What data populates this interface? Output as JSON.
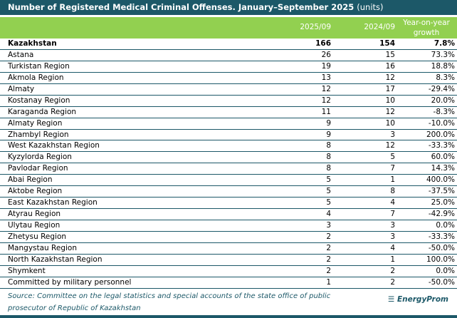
{
  "chart_data": {
    "type": "table",
    "title": "Number of Registered Medical Criminal Offenses. January–September 2025",
    "unit": "(units)",
    "columns": [
      "",
      "2025/09",
      "2024/09",
      "Year-on-year growth"
    ],
    "total": {
      "region": "Kazakhstan",
      "v2025": "166",
      "v2024": "154",
      "growth": "7.8%"
    },
    "rows": [
      {
        "region": "Astana",
        "v2025": "26",
        "v2024": "15",
        "growth": "73.3%"
      },
      {
        "region": "Turkistan Region",
        "v2025": "19",
        "v2024": "16",
        "growth": "18.8%"
      },
      {
        "region": "Akmola Region",
        "v2025": "13",
        "v2024": "12",
        "growth": "8.3%"
      },
      {
        "region": "Almaty",
        "v2025": "12",
        "v2024": "17",
        "growth": "-29.4%"
      },
      {
        "region": "Kostanay Region",
        "v2025": "12",
        "v2024": "10",
        "growth": "20.0%"
      },
      {
        "region": "Karaganda Region",
        "v2025": "11",
        "v2024": "12",
        "growth": "-8.3%"
      },
      {
        "region": "Almaty Region",
        "v2025": "9",
        "v2024": "10",
        "growth": "-10.0%"
      },
      {
        "region": "Zhambyl Region",
        "v2025": "9",
        "v2024": "3",
        "growth": "200.0%"
      },
      {
        "region": "West Kazakhstan Region",
        "v2025": "8",
        "v2024": "12",
        "growth": "-33.3%"
      },
      {
        "region": "Kyzylorda Region",
        "v2025": "8",
        "v2024": "5",
        "growth": "60.0%"
      },
      {
        "region": "Pavlodar Region",
        "v2025": "8",
        "v2024": "7",
        "growth": "14.3%"
      },
      {
        "region": "Abai Region",
        "v2025": "5",
        "v2024": "1",
        "growth": "400.0%"
      },
      {
        "region": "Aktobe Region",
        "v2025": "5",
        "v2024": "8",
        "growth": "-37.5%"
      },
      {
        "region": "East Kazakhstan Region",
        "v2025": "5",
        "v2024": "4",
        "growth": "25.0%"
      },
      {
        "region": "Atyrau Region",
        "v2025": "4",
        "v2024": "7",
        "growth": "-42.9%"
      },
      {
        "region": "Ulytau Region",
        "v2025": "3",
        "v2024": "3",
        "growth": "0.0%"
      },
      {
        "region": "Zhetysu Region",
        "v2025": "2",
        "v2024": "3",
        "growth": "-33.3%"
      },
      {
        "region": "Mangystau Region",
        "v2025": "2",
        "v2024": "4",
        "growth": "-50.0%"
      },
      {
        "region": "North Kazakhstan Region",
        "v2025": "2",
        "v2024": "1",
        "growth": "100.0%"
      },
      {
        "region": "Shymkent",
        "v2025": "2",
        "v2024": "2",
        "growth": "0.0%"
      },
      {
        "region": "Committed by military personnel",
        "v2025": "1",
        "v2024": "2",
        "growth": "-50.0%"
      }
    ]
  },
  "source": "Source: Committee on the legal statistics and special accounts of the state office of public prosecutor of Republic of Kazakhstan",
  "logo": "EnergyProm",
  "colors": {
    "title_bg": "#1c5868",
    "header_bg": "#92d050"
  }
}
